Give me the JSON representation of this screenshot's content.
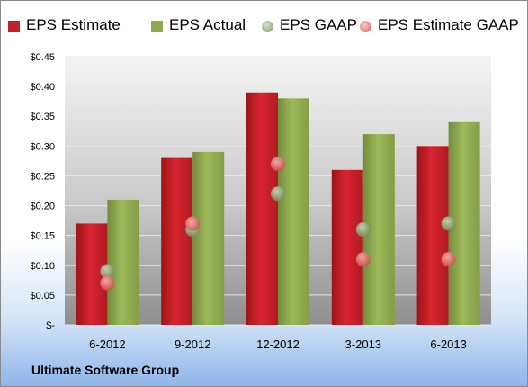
{
  "footer": {
    "label": "Ultimate Software Group"
  },
  "chart_data": {
    "type": "bar",
    "categories": [
      "6-2012",
      "9-2012",
      "12-2012",
      "3-2013",
      "6-2013"
    ],
    "series": [
      {
        "name": "EPS Estimate",
        "kind": "bar",
        "color": "#c8202a",
        "values": [
          0.17,
          0.28,
          0.39,
          0.26,
          0.3
        ]
      },
      {
        "name": "EPS Actual",
        "kind": "bar",
        "color": "#8faa4e",
        "values": [
          0.21,
          0.29,
          0.38,
          0.32,
          0.34
        ]
      },
      {
        "name": "EPS GAAP",
        "kind": "marker",
        "color": "#7f9a6a",
        "values": [
          0.09,
          0.16,
          0.22,
          0.16,
          0.17
        ]
      },
      {
        "name": "EPS Estimate GAAP",
        "kind": "marker",
        "color": "#e06060",
        "values": [
          0.07,
          0.17,
          0.27,
          0.11,
          0.11
        ]
      }
    ],
    "ylim": [
      0,
      0.45
    ],
    "yticks": [
      0,
      0.05,
      0.1,
      0.15,
      0.2,
      0.25,
      0.3,
      0.35,
      0.4,
      0.45
    ],
    "ytick_labels": [
      "$-",
      "$0.05",
      "$0.10",
      "$0.15",
      "$0.20",
      "$0.25",
      "$0.30",
      "$0.35",
      "$0.40",
      "$0.45"
    ],
    "grid": true,
    "legend_position": "top"
  }
}
